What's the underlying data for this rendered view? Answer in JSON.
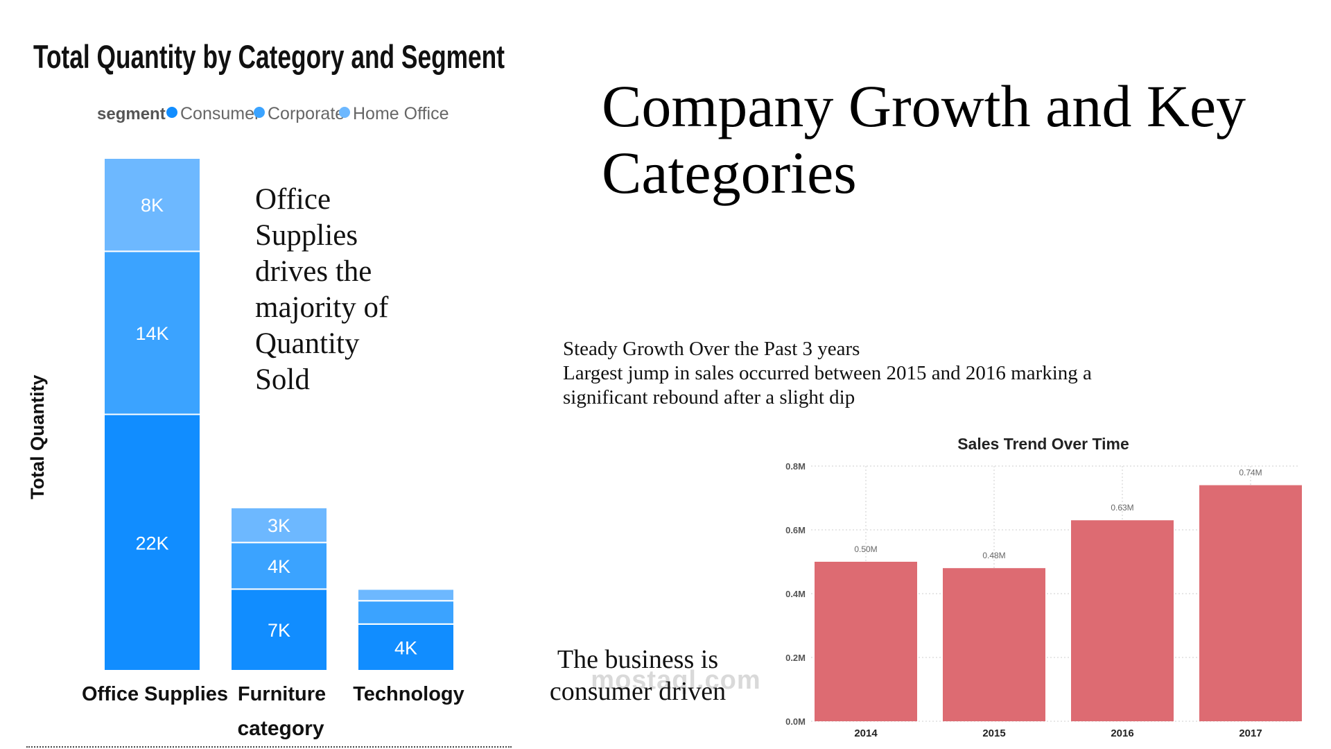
{
  "slide": {
    "title": "Company Growth and Key Categories",
    "callout_office_supplies": "Office Supplies drives the majority of Quantity Sold",
    "growth_notes": [
      "Steady Growth Over the Past 3 years",
      "Largest jump in sales occurred between 2015 and 2016 marking a",
      "significant rebound after a slight dip"
    ],
    "callout_consumer": "The business is consumer driven",
    "watermark": "mostaql.com"
  },
  "colors": {
    "consumer": "#118DFF",
    "corporate": "#3BA3FF",
    "home_office": "#6DB8FF",
    "sales_bar": "#DD6B72",
    "grid": "#cccccc"
  },
  "chart_data": [
    {
      "type": "bar",
      "stacked": true,
      "title": "Total Quantity by Category and Segment",
      "legend_title": "segment",
      "legend_position": "top-left",
      "xlabel": "category",
      "ylabel": "Total Quantity",
      "categories": [
        "Office Supplies",
        "Furniture",
        "Technology"
      ],
      "series": [
        {
          "name": "Consumer",
          "values": [
            22,
            7,
            4
          ],
          "labels": [
            "22K",
            "7K",
            "4K"
          ]
        },
        {
          "name": "Corporate",
          "values": [
            14,
            4,
            2
          ],
          "labels": [
            "14K",
            "4K",
            ""
          ]
        },
        {
          "name": "Home Office",
          "values": [
            8,
            3,
            1
          ],
          "labels": [
            "8K",
            "3K",
            ""
          ]
        }
      ],
      "ylim": [
        0,
        44
      ],
      "units": "thousands"
    },
    {
      "type": "bar",
      "title": "Sales Trend Over Time",
      "categories": [
        "2014",
        "2015",
        "2016",
        "2017"
      ],
      "values": [
        0.5,
        0.48,
        0.63,
        0.74
      ],
      "value_labels": [
        "0.50M",
        "0.48M",
        "0.63M",
        "0.74M"
      ],
      "yticks": [
        0,
        0.2,
        0.4,
        0.6,
        0.8
      ],
      "ytick_labels": [
        "0.0M",
        "0.2M",
        "0.4M",
        "0.6M",
        "0.8M"
      ],
      "ylim": [
        0,
        0.8
      ],
      "grid": true,
      "units": "millions"
    }
  ]
}
